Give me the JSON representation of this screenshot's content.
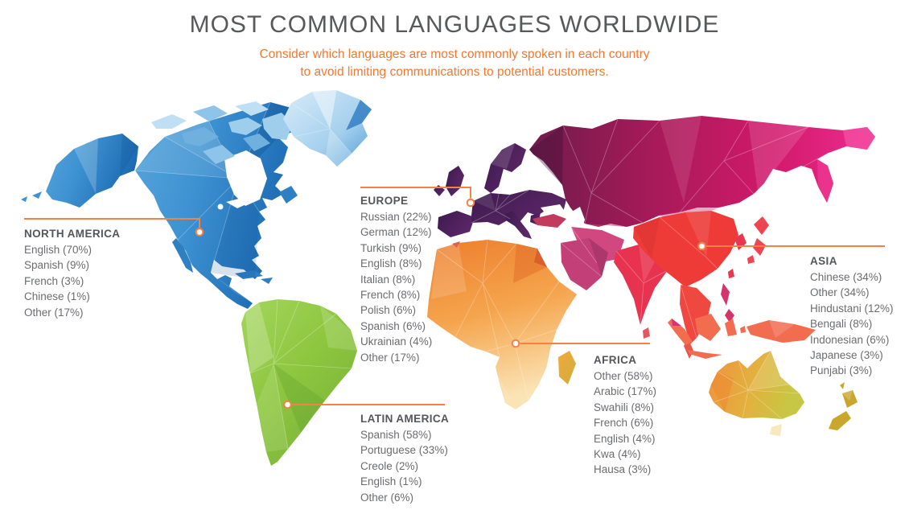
{
  "title": "MOST COMMON LANGUAGES WORLDWIDE",
  "subtitle": [
    "Consider which languages are most commonly spoken in each country",
    "to avoid limiting communications to potential customers."
  ],
  "chart_data": {
    "type": "table",
    "title": "MOST COMMON LANGUAGES WORLDWIDE",
    "subtitle": "Consider which languages are most commonly spoken in each country to avoid limiting communications to potential customers.",
    "value_format": "Language (percent%)",
    "regions": [
      {
        "name": "NORTH AMERICA",
        "map_color": "#2F80C3",
        "languages": [
          [
            "English",
            70
          ],
          [
            "Spanish",
            9
          ],
          [
            "French",
            3
          ],
          [
            "Chinese",
            1
          ],
          [
            "Other",
            17
          ]
        ]
      },
      {
        "name": "EUROPE",
        "map_color": "#4A2156",
        "languages": [
          [
            "Russian",
            22
          ],
          [
            "German",
            12
          ],
          [
            "Turkish",
            9
          ],
          [
            "English",
            8
          ],
          [
            "Italian",
            8
          ],
          [
            "French",
            8
          ],
          [
            "Polish",
            6
          ],
          [
            "Spanish",
            6
          ],
          [
            "Ukrainian",
            4
          ],
          [
            "Other",
            17
          ]
        ]
      },
      {
        "name": "ASIA",
        "map_color": "#D81B60",
        "languages": [
          [
            "Chinese",
            34
          ],
          [
            "Other",
            34
          ],
          [
            "Hindustani",
            12
          ],
          [
            "Bengali",
            8
          ],
          [
            "Indonesian",
            6
          ],
          [
            "Japanese",
            3
          ],
          [
            "Punjabi",
            3
          ]
        ]
      },
      {
        "name": "AFRICA",
        "map_color": "#F0913C",
        "languages": [
          [
            "Other",
            58
          ],
          [
            "Arabic",
            17
          ],
          [
            "Swahili",
            8
          ],
          [
            "French",
            6
          ],
          [
            "English",
            4
          ],
          [
            "Kwa",
            4
          ],
          [
            "Hausa",
            3
          ]
        ]
      },
      {
        "name": "LATIN AMERICA",
        "map_color": "#8DC63F",
        "languages": [
          [
            "Spanish",
            58
          ],
          [
            "Portuguese",
            33
          ],
          [
            "Creole",
            2
          ],
          [
            "English",
            1
          ],
          [
            "Other",
            6
          ]
        ]
      }
    ]
  },
  "colors": {
    "accent_orange": "#F4772F",
    "leader_orange": "#F58142",
    "title_gray": "#58595B",
    "text_gray": "#6B6C6F"
  }
}
